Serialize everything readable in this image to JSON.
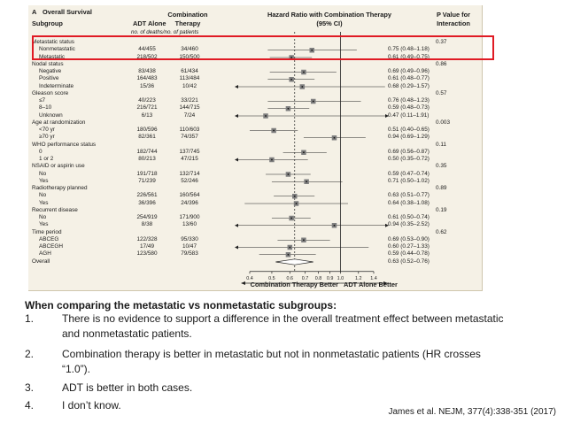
{
  "figure": {
    "panel_letter": "A",
    "panel_title": "Overall Survival",
    "subgroup_header": "Subgroup",
    "col_adt": "ADT Alone",
    "col_combo_line1": "Combination",
    "col_combo_line2": "Therapy",
    "counts_caption": "no. of deaths/no. of patients",
    "hr_header_line1": "Hazard Ratio with Combination Therapy",
    "hr_header_line2": "(95% CI)",
    "p_header_line1": "P Value for",
    "p_header_line2": "Interaction",
    "footer_left": "Combination Therapy Better",
    "footer_right": "ADT Alone Better"
  },
  "chart_data": {
    "type": "forest",
    "x_scale": "log",
    "reference_line": 1.0,
    "xlim": [
      0.4,
      1.4
    ],
    "ticks": [
      "0.4",
      "0.5",
      "0.6",
      "0.7",
      "0.8",
      "0.9",
      "1.0",
      "1.2",
      "1.4"
    ],
    "tick_values": [
      0.4,
      0.5,
      0.6,
      0.7,
      0.8,
      0.9,
      1.0,
      1.2,
      1.4
    ],
    "overall_line": 0.63,
    "rows": [
      {
        "label": "Metastatic status",
        "kind": "group",
        "p": "0.37"
      },
      {
        "label": "Nonmetastatic",
        "kind": "item",
        "adt": "44/455",
        "combo": "34/460",
        "hr": 0.75,
        "lo": 0.48,
        "hi": 1.18,
        "ci": "0.75 (0.48–1.18)"
      },
      {
        "label": "Metastatic",
        "kind": "item",
        "adt": "218/502",
        "combo": "150/500",
        "hr": 0.61,
        "lo": 0.49,
        "hi": 0.75,
        "ci": "0.61 (0.49–0.75)"
      },
      {
        "label": "Nodal status",
        "kind": "group",
        "p": "0.86"
      },
      {
        "label": "Negative",
        "kind": "item",
        "adt": "83/438",
        "combo": "61/434",
        "hr": 0.69,
        "lo": 0.49,
        "hi": 0.96,
        "ci": "0.69 (0.49–0.96)"
      },
      {
        "label": "Positive",
        "kind": "item",
        "adt": "164/483",
        "combo": "113/484",
        "hr": 0.61,
        "lo": 0.48,
        "hi": 0.77,
        "ci": "0.61 (0.48–0.77)"
      },
      {
        "label": "Indeterminate",
        "kind": "item",
        "adt": "15/36",
        "combo": "10/42",
        "hr": 0.68,
        "lo": 0.29,
        "hi": 1.57,
        "ci": "0.68 (0.29–1.57)"
      },
      {
        "label": "Gleason score",
        "kind": "group",
        "p": "0.57"
      },
      {
        "label": "≤7",
        "kind": "item",
        "adt": "40/223",
        "combo": "33/221",
        "hr": 0.76,
        "lo": 0.48,
        "hi": 1.23,
        "ci": "0.76 (0.48–1.23)"
      },
      {
        "label": "8–10",
        "kind": "item",
        "adt": "216/721",
        "combo": "144/715",
        "hr": 0.59,
        "lo": 0.48,
        "hi": 0.73,
        "ci": "0.59 (0.48–0.73)"
      },
      {
        "label": "Unknown",
        "kind": "item",
        "adt": "6/13",
        "combo": "7/24",
        "hr": 0.47,
        "lo": 0.11,
        "hi": 1.91,
        "ci": "0.47 (0.11–1.91)"
      },
      {
        "label": "Age at randomization",
        "kind": "group",
        "p": "0.003"
      },
      {
        "label": "<70 yr",
        "kind": "item",
        "adt": "180/596",
        "combo": "110/603",
        "hr": 0.51,
        "lo": 0.4,
        "hi": 0.65,
        "ci": "0.51 (0.40–0.65)"
      },
      {
        "label": "≥70 yr",
        "kind": "item",
        "adt": "82/361",
        "combo": "74/357",
        "hr": 0.94,
        "lo": 0.69,
        "hi": 1.29,
        "ci": "0.94 (0.69–1.29)"
      },
      {
        "label": "WHO performance status",
        "kind": "group",
        "p": "0.11"
      },
      {
        "label": "0",
        "kind": "item",
        "adt": "182/744",
        "combo": "137/745",
        "hr": 0.69,
        "lo": 0.56,
        "hi": 0.87,
        "ci": "0.69 (0.56–0.87)"
      },
      {
        "label": "1 or 2",
        "kind": "item",
        "adt": "80/213",
        "combo": "47/215",
        "hr": 0.5,
        "lo": 0.35,
        "hi": 0.72,
        "ci": "0.50 (0.35–0.72)"
      },
      {
        "label": "NSAID or aspirin use",
        "kind": "group",
        "p": "0.35"
      },
      {
        "label": "No",
        "kind": "item",
        "adt": "191/718",
        "combo": "132/714",
        "hr": 0.59,
        "lo": 0.47,
        "hi": 0.74,
        "ci": "0.59 (0.47–0.74)"
      },
      {
        "label": "Yes",
        "kind": "item",
        "adt": "71/239",
        "combo": "52/246",
        "hr": 0.71,
        "lo": 0.5,
        "hi": 1.02,
        "ci": "0.71 (0.50–1.02)"
      },
      {
        "label": "Radiotherapy planned",
        "kind": "group",
        "p": "0.89"
      },
      {
        "label": "No",
        "kind": "item",
        "adt": "226/561",
        "combo": "160/564",
        "hr": 0.63,
        "lo": 0.51,
        "hi": 0.77,
        "ci": "0.63 (0.51–0.77)"
      },
      {
        "label": "Yes",
        "kind": "item",
        "adt": "36/396",
        "combo": "24/396",
        "hr": 0.64,
        "lo": 0.38,
        "hi": 1.08,
        "ci": "0.64 (0.38–1.08)"
      },
      {
        "label": "Recurrent disease",
        "kind": "group",
        "p": "0.19"
      },
      {
        "label": "No",
        "kind": "item",
        "adt": "254/919",
        "combo": "171/900",
        "hr": 0.61,
        "lo": 0.5,
        "hi": 0.74,
        "ci": "0.61 (0.50–0.74)"
      },
      {
        "label": "Yes",
        "kind": "item",
        "adt": "8/38",
        "combo": "13/60",
        "hr": 0.94,
        "lo": 0.35,
        "hi": 2.52,
        "ci": "0.94 (0.35–2.52)"
      },
      {
        "label": "Time period",
        "kind": "group",
        "p": "0.62"
      },
      {
        "label": "ABCEG",
        "kind": "item",
        "adt": "122/328",
        "combo": "95/330",
        "hr": 0.69,
        "lo": 0.53,
        "hi": 0.9,
        "ci": "0.69 (0.53–0.90)"
      },
      {
        "label": "ABCEGH",
        "kind": "item",
        "adt": "17/49",
        "combo": "10/47",
        "hr": 0.6,
        "lo": 0.27,
        "hi": 1.33,
        "ci": "0.60 (0.27–1.33)"
      },
      {
        "label": "AGH",
        "kind": "item",
        "adt": "123/580",
        "combo": "79/583",
        "hr": 0.59,
        "lo": 0.44,
        "hi": 0.78,
        "ci": "0.59 (0.44–0.78)"
      },
      {
        "label": "Overall",
        "kind": "overall",
        "hr": 0.63,
        "lo": 0.52,
        "hi": 0.76,
        "ci": "0.63 (0.52–0.76)"
      }
    ]
  },
  "question": {
    "stem": "When comparing the metastatic vs nonmetastatic subgroups:",
    "options": [
      {
        "num": "1.",
        "text": "There is no evidence to support a difference in the overall treatment effect between metastatic and nonmetastatic patients."
      },
      {
        "num": "2.",
        "text": "Combination therapy is better in metastatic but not in nonmetastatic patients (HR crosses “1.0”)."
      },
      {
        "num": "3.",
        "text": "ADT is better in both cases."
      },
      {
        "num": "4.",
        "text": "I don’t know."
      }
    ]
  },
  "citation": "James et al. NEJM, 377(4):338-351 (2017)",
  "colors": {
    "highlight": "#e01b24",
    "figure_bg": "#f5f1e6",
    "marker": "#7f7f7f"
  }
}
